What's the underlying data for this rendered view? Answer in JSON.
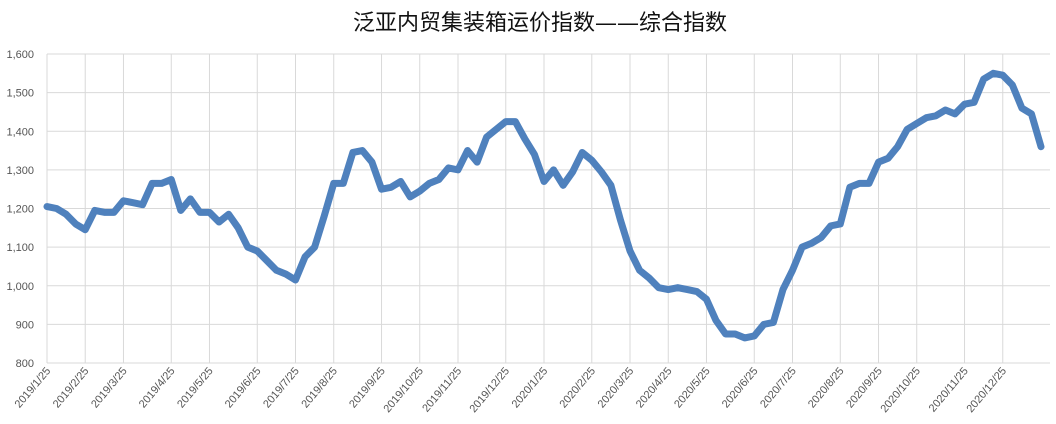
{
  "chart_data": {
    "type": "line",
    "title": "泛亚内贸集装箱运价指数——综合指数",
    "categories": [
      "2019/1/25",
      null,
      null,
      null,
      "2019/2/25",
      null,
      null,
      null,
      "2019/3/25",
      null,
      null,
      null,
      null,
      "2019/4/25",
      null,
      null,
      null,
      "2019/5/25",
      null,
      null,
      null,
      null,
      "2019/6/25",
      null,
      null,
      null,
      "2019/7/25",
      null,
      null,
      null,
      "2019/8/25",
      null,
      null,
      null,
      null,
      "2019/9/25",
      null,
      null,
      null,
      "2019/10/25",
      null,
      null,
      null,
      "2019/11/25",
      null,
      null,
      null,
      null,
      "2019/12/25",
      null,
      null,
      null,
      "2020/1/25",
      null,
      null,
      null,
      null,
      "2020/2/25",
      null,
      null,
      null,
      "2020/3/25",
      null,
      null,
      null,
      "2020/4/25",
      null,
      null,
      null,
      "2020/5/25",
      null,
      null,
      null,
      null,
      "2020/6/25",
      null,
      null,
      null,
      "2020/7/25",
      null,
      null,
      null,
      null,
      "2020/8/25",
      null,
      null,
      null,
      "2020/9/25",
      null,
      null,
      null,
      "2020/10/25",
      null,
      null,
      null,
      null,
      "2020/11/25",
      null,
      null,
      null,
      "2020/12/25",
      null,
      null,
      null,
      null
    ],
    "values": [
      1205,
      1200,
      1185,
      1160,
      1145,
      1195,
      1190,
      1190,
      1220,
      1215,
      1210,
      1265,
      1265,
      1275,
      1195,
      1225,
      1190,
      1190,
      1165,
      1185,
      1150,
      1100,
      1090,
      1065,
      1040,
      1030,
      1015,
      1075,
      1100,
      1180,
      1265,
      1265,
      1345,
      1350,
      1320,
      1250,
      1255,
      1270,
      1230,
      1245,
      1265,
      1275,
      1305,
      1300,
      1350,
      1320,
      1385,
      1405,
      1425,
      1425,
      1380,
      1340,
      1270,
      1300,
      1260,
      1295,
      1345,
      1325,
      1295,
      1260,
      1170,
      1090,
      1040,
      1020,
      995,
      990,
      995,
      990,
      985,
      965,
      910,
      875,
      875,
      865,
      870,
      900,
      905,
      990,
      1040,
      1100,
      1110,
      1125,
      1155,
      1160,
      1255,
      1265,
      1265,
      1320,
      1330,
      1360,
      1405,
      1420,
      1435,
      1440,
      1455,
      1445,
      1470,
      1475,
      1535,
      1550,
      1545,
      1520,
      1460,
      1445,
      1360
    ],
    "color": "#4f81bd",
    "ylim": [
      800,
      1600
    ],
    "yticks": [
      800,
      900,
      {
        "value": 1000,
        "label": "1,000"
      },
      {
        "value": 1100,
        "label": "1,100"
      },
      {
        "value": 1200,
        "label": "1,200"
      },
      {
        "value": 1300,
        "label": "1,300"
      },
      {
        "value": 1400,
        "label": "1,400"
      },
      {
        "value": 1500,
        "label": "1,500"
      },
      {
        "value": 1600,
        "label": "1,600"
      }
    ],
    "grid": true
  }
}
